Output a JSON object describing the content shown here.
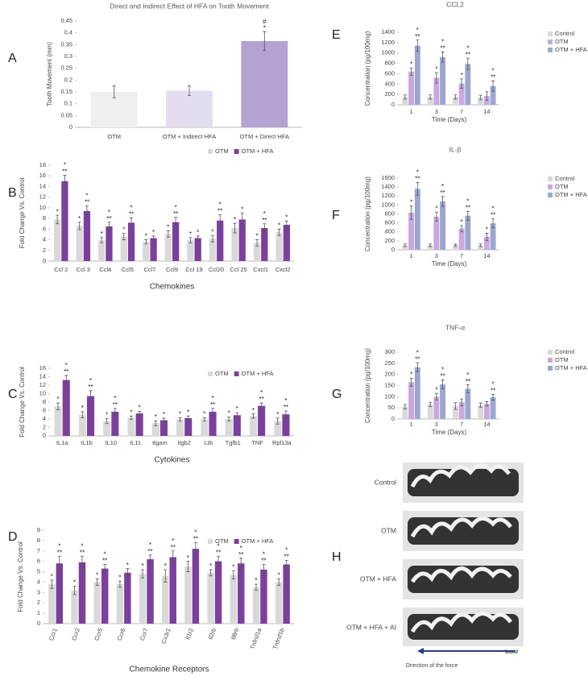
{
  "chart_data": [
    {
      "type": "bar",
      "panel": "A",
      "title": "Direct and Indirect Effect of HFA on Tooth Movement",
      "ylabel": "Tooth Movement (mm)",
      "categories": [
        "OTM",
        "OTM + Indirect HFA",
        "OTM + Direct HFA"
      ],
      "values": [
        0.15,
        0.155,
        0.365
      ],
      "errors": [
        0.025,
        0.02,
        0.04
      ],
      "colors": [
        "#efefef",
        "#e4ddef",
        "#b3a2d2"
      ],
      "annotations": [
        [],
        [],
        [
          "#",
          "*"
        ]
      ],
      "ylim": [
        0,
        0.45
      ],
      "yticks": [
        0,
        0.05,
        0.1,
        0.15,
        0.2,
        0.25,
        0.3,
        0.35,
        0.4,
        0.45
      ]
    },
    {
      "type": "bar",
      "panel": "B",
      "ylabel": "Fold Change Vs. Control",
      "xlabel": "Chemokines",
      "categories": [
        "Ccl 2",
        "Ccl 3",
        "Ccl4",
        "Ccl5",
        "Ccl7",
        "Ccl9",
        "Ccl 19",
        "Ccl20",
        "Ccl 25",
        "Cxcl1",
        "Cxcl2"
      ],
      "series": [
        {
          "name": "OTM",
          "color": "#d9d9d9",
          "values": [
            7.8,
            6.6,
            3.9,
            4.6,
            3.6,
            5.1,
            3.9,
            4.2,
            6.2,
            3.4,
            5.4
          ],
          "errors": [
            0.8,
            0.7,
            0.5,
            0.6,
            0.4,
            0.6,
            0.5,
            0.6,
            0.9,
            0.6,
            0.6
          ],
          "annotations": [
            [
              "*"
            ],
            [
              "*"
            ],
            [
              "*"
            ],
            [
              "*"
            ],
            [
              "*"
            ],
            [
              "*"
            ],
            [
              "*"
            ],
            [
              "*"
            ],
            [
              "*"
            ],
            [
              "*"
            ],
            [
              "*"
            ]
          ]
        },
        {
          "name": "OTM + HFA",
          "color": "#7b3f9e",
          "values": [
            15.0,
            9.4,
            6.5,
            7.2,
            4.3,
            7.3,
            4.3,
            7.6,
            7.8,
            6.2,
            6.8
          ],
          "errors": [
            1.1,
            1.0,
            0.8,
            0.9,
            0.4,
            0.9,
            0.4,
            1.1,
            1.2,
            0.8,
            0.7
          ],
          "annotations": [
            [
              "*",
              "**"
            ],
            [
              "*",
              "**"
            ],
            [
              "*",
              "**"
            ],
            [
              "*",
              "**"
            ],
            [
              "*"
            ],
            [
              "*",
              "**"
            ],
            [
              "*"
            ],
            [
              "*",
              "**"
            ],
            [
              "*"
            ],
            [
              "*",
              "**"
            ],
            [
              "*"
            ]
          ]
        }
      ],
      "ylim": [
        0,
        18
      ],
      "yticks": [
        0,
        2,
        4,
        6,
        8,
        10,
        12,
        14,
        16,
        18
      ],
      "legend": "top-right"
    },
    {
      "type": "bar",
      "panel": "C",
      "ylabel": "Fold Change Vs. Control",
      "xlabel": "Cytokines",
      "categories": [
        "IL1a",
        "IL1b",
        "IL10",
        "IL11",
        "Itgam",
        "Itgb2",
        "Ltb",
        "Tgfb1",
        "TNF",
        "Rpl13a"
      ],
      "series": [
        {
          "name": "OTM",
          "color": "#d9d9d9",
          "values": [
            7.0,
            5.0,
            3.5,
            4.3,
            3.0,
            3.9,
            3.9,
            4.0,
            4.7,
            3.5
          ],
          "errors": [
            0.8,
            0.7,
            0.6,
            0.4,
            0.6,
            0.4,
            0.4,
            0.5,
            0.5,
            0.7
          ],
          "annotations": [
            [
              "*"
            ],
            [
              "*"
            ],
            [
              "*"
            ],
            [
              "*"
            ],
            [
              "*"
            ],
            [
              "*"
            ],
            [
              "*"
            ],
            [
              "*"
            ],
            [
              "*"
            ],
            [
              "*"
            ]
          ]
        },
        {
          "name": "OTM + HFA",
          "color": "#7b3f9e",
          "values": [
            13.2,
            9.4,
            5.7,
            5.3,
            3.7,
            4.2,
            5.7,
            4.9,
            7.1,
            5.1
          ],
          "errors": [
            1.1,
            1.3,
            0.8,
            0.5,
            0.5,
            0.5,
            0.8,
            0.6,
            0.7,
            0.8
          ],
          "annotations": [
            [
              "*",
              "**"
            ],
            [
              "*",
              "**"
            ],
            [
              "*",
              "**"
            ],
            [
              "*"
            ],
            [
              "*"
            ],
            [
              "*"
            ],
            [
              "*",
              "**"
            ],
            [
              "*"
            ],
            [
              "*",
              "**"
            ],
            [
              "*",
              "**"
            ]
          ]
        }
      ],
      "ylim": [
        0,
        16
      ],
      "yticks": [
        0,
        2,
        4,
        6,
        8,
        10,
        12,
        14,
        16
      ],
      "legend": "top-right"
    },
    {
      "type": "bar",
      "panel": "D",
      "ylabel": "Fold Change Vs. Control",
      "xlabel": "Chemokine Receptors",
      "categories": [
        "Ccr1",
        "Ccr2",
        "Ccr5",
        "Ccr6",
        "Ccr7",
        "Cx3r1",
        "Il1r2",
        "Il2rb",
        "Il8rb",
        "Tnfrsf1a",
        "Tnfrsf1b"
      ],
      "series": [
        {
          "name": "OTM",
          "color": "#d9d9d9",
          "values": [
            3.8,
            3.2,
            4.0,
            3.8,
            4.8,
            4.6,
            5.5,
            4.9,
            4.7,
            3.5,
            4.0
          ],
          "errors": [
            0.4,
            0.4,
            0.3,
            0.3,
            0.4,
            0.6,
            0.5,
            0.3,
            0.4,
            0.3,
            0.3
          ],
          "annotations": [
            [
              "*"
            ],
            [
              "*"
            ],
            [
              "*"
            ],
            [
              "*"
            ],
            [
              "*"
            ],
            [
              "*"
            ],
            [
              "*"
            ],
            [
              "*"
            ],
            [
              "*"
            ],
            [
              "*"
            ],
            [
              "*"
            ]
          ]
        },
        {
          "name": "OTM + HFA",
          "color": "#7b3f9e",
          "values": [
            5.8,
            5.9,
            5.3,
            4.9,
            6.2,
            6.4,
            7.2,
            6.0,
            5.8,
            5.2,
            5.7
          ],
          "errors": [
            0.7,
            0.6,
            0.4,
            0.4,
            0.4,
            0.6,
            0.6,
            0.5,
            0.5,
            0.5,
            0.4
          ],
          "annotations": [
            [
              "*",
              "**"
            ],
            [
              "*",
              "**"
            ],
            [
              "*",
              "**"
            ],
            [
              "*"
            ],
            [
              "*",
              "**"
            ],
            [
              "*",
              "**"
            ],
            [
              "*",
              "**"
            ],
            [
              "*",
              "**"
            ],
            [
              "*",
              "**"
            ],
            [
              "*",
              "**"
            ],
            [
              "*",
              "**"
            ]
          ]
        }
      ],
      "ylim": [
        0,
        9
      ],
      "yticks": [
        0,
        1,
        2,
        3,
        4,
        5,
        6,
        7,
        8,
        9
      ],
      "legend": "top-right"
    },
    {
      "type": "bar",
      "panel": "E",
      "title": "CCL2",
      "ylabel": "Concentration (pg/100mg)",
      "xlabel": "Time (Days)",
      "categories": [
        "1",
        "3",
        "7",
        "14"
      ],
      "series": [
        {
          "name": "Control",
          "color": "#d9d9d9",
          "values": [
            150,
            150,
            150,
            140
          ],
          "errors": [
            40,
            40,
            40,
            45
          ],
          "annotations": [
            [],
            [],
            [],
            []
          ]
        },
        {
          "name": "OTM",
          "color": "#c9a8df",
          "values": [
            640,
            520,
            410,
            170
          ],
          "errors": [
            70,
            100,
            90,
            80
          ],
          "annotations": [
            [
              "*"
            ],
            [
              "*"
            ],
            [
              "*"
            ],
            []
          ]
        },
        {
          "name": "OTM + HFA",
          "color": "#9ca7d0",
          "values": [
            1140,
            920,
            790,
            360
          ],
          "errors": [
            110,
            100,
            110,
            100
          ],
          "annotations": [
            [
              "*",
              "**"
            ],
            [
              "*",
              "**"
            ],
            [
              "*",
              "**"
            ],
            [
              "*",
              "**"
            ]
          ]
        }
      ],
      "ylim": [
        0,
        1400
      ],
      "yticks": [
        0,
        200,
        400,
        600,
        800,
        1000,
        1200,
        1400
      ],
      "legend": "top-right"
    },
    {
      "type": "bar",
      "panel": "F",
      "title": "IL-β",
      "ylabel": "Concentration (pg/100mg)",
      "xlabel": "Time (Days)",
      "categories": [
        "1",
        "3",
        "7",
        "14"
      ],
      "series": [
        {
          "name": "Control",
          "color": "#d9d9d9",
          "values": [
            100,
            100,
            100,
            100
          ],
          "errors": [
            30,
            30,
            25,
            30
          ],
          "annotations": [
            [],
            [],
            [],
            []
          ]
        },
        {
          "name": "OTM",
          "color": "#c9a8df",
          "values": [
            830,
            740,
            470,
            290
          ],
          "errors": [
            150,
            100,
            70,
            80
          ],
          "annotations": [
            [
              "*"
            ],
            [
              "*"
            ],
            [
              "*"
            ],
            [
              "*"
            ]
          ]
        },
        {
          "name": "OTM + HFA",
          "color": "#9ca7d0",
          "values": [
            1360,
            1080,
            760,
            590
          ],
          "errors": [
            140,
            110,
            100,
            100
          ],
          "annotations": [
            [
              "*",
              "**"
            ],
            [
              "*",
              "**"
            ],
            [
              "*",
              "**"
            ],
            [
              "*",
              "**"
            ]
          ]
        }
      ],
      "ylim": [
        0,
        1600
      ],
      "yticks": [
        0,
        200,
        400,
        600,
        800,
        1000,
        1200,
        1400,
        1600
      ],
      "legend": "top-right"
    },
    {
      "type": "bar",
      "panel": "G",
      "title": "TNF-α",
      "ylabel": "Concentration (pg/100mg)",
      "xlabel": "Time (Days)",
      "categories": [
        "1",
        "3",
        "7",
        "14"
      ],
      "series": [
        {
          "name": "Control",
          "color": "#d9d9d9",
          "values": [
            55,
            65,
            58,
            62
          ],
          "errors": [
            10,
            10,
            15,
            10
          ],
          "annotations": [
            [],
            [],
            [],
            []
          ]
        },
        {
          "name": "OTM",
          "color": "#c9a8df",
          "values": [
            165,
            100,
            75,
            68
          ],
          "errors": [
            18,
            15,
            15,
            10
          ],
          "annotations": [
            [
              "*"
            ],
            [
              "*"
            ],
            [],
            []
          ]
        },
        {
          "name": "OTM + HFA",
          "color": "#9ca7d0",
          "values": [
            232,
            155,
            135,
            97
          ],
          "errors": [
            20,
            20,
            18,
            13
          ],
          "annotations": [
            [
              "*",
              "**"
            ],
            [
              "*",
              "**"
            ],
            [
              "*",
              "**"
            ],
            [
              "*",
              "**"
            ]
          ]
        }
      ],
      "ylim": [
        0,
        300
      ],
      "yticks": [
        0,
        50,
        100,
        150,
        200,
        250,
        300
      ],
      "legend": "top-right"
    }
  ],
  "panel_h": {
    "panel": "H",
    "labels": [
      "Control",
      "OTM",
      "OTM + HFA",
      "OTM + HFA + AI"
    ],
    "caption": "Direction of the force"
  }
}
